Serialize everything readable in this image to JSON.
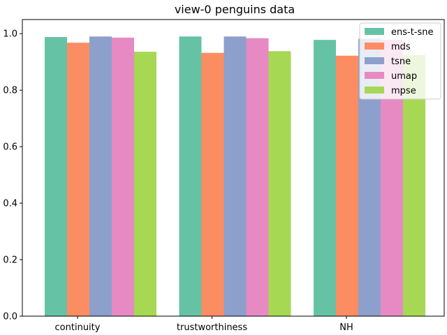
{
  "chart_data": {
    "type": "bar",
    "title": "view-0 penguins data",
    "xlabel": "",
    "ylabel": "",
    "categories": [
      "continuity",
      "trustworthiness",
      "NH"
    ],
    "ylim": [
      0,
      1.05
    ],
    "yticks": [
      "0.0",
      "0.2",
      "0.4",
      "0.6",
      "0.8",
      "1.0"
    ],
    "grid": false,
    "legend_position": "top-right",
    "series": [
      {
        "name": "ens-t-sne",
        "color": "#66c2a5",
        "values": [
          0.988,
          0.99,
          0.978
        ]
      },
      {
        "name": "mds",
        "color": "#fc8d62",
        "values": [
          0.968,
          0.932,
          0.922
        ]
      },
      {
        "name": "tsne",
        "color": "#8da0cb",
        "values": [
          0.99,
          0.99,
          0.982
        ]
      },
      {
        "name": "umap",
        "color": "#e78ac3",
        "values": [
          0.986,
          0.984,
          0.978
        ]
      },
      {
        "name": "mpse",
        "color": "#a6d854",
        "values": [
          0.936,
          0.938,
          0.924
        ]
      }
    ]
  }
}
